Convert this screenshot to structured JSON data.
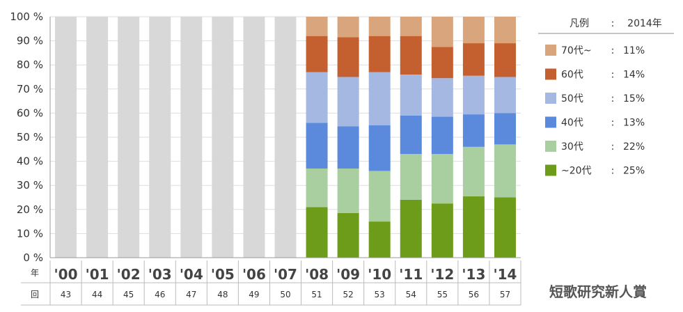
{
  "chart_data": {
    "type": "bar",
    "stacked": true,
    "categories": [
      "'00",
      "'01",
      "'02",
      "'03",
      "'04",
      "'05",
      "'06",
      "'07",
      "'08",
      "'09",
      "'10",
      "'11",
      "'12",
      "'13",
      "'14"
    ],
    "rounds": [
      "43",
      "44",
      "45",
      "46",
      "47",
      "48",
      "49",
      "50",
      "51",
      "52",
      "53",
      "54",
      "55",
      "56",
      "57"
    ],
    "row_headers": {
      "year": "年",
      "round": "回"
    },
    "y_ticks": [
      "0 %",
      "10 %",
      "20 %",
      "30 %",
      "40 %",
      "50 %",
      "60 %",
      "70 %",
      "80 %",
      "90 %",
      "100 %"
    ],
    "ylim": [
      0,
      100
    ],
    "no_data_color": "#d8d8d8",
    "series": [
      {
        "name": "~20代",
        "color": "#6d9c1a",
        "values": [
          null,
          null,
          null,
          null,
          null,
          null,
          null,
          null,
          21,
          18.5,
          15,
          24,
          22.5,
          25.5,
          25
        ]
      },
      {
        "name": "30代",
        "color": "#a9cfa0",
        "values": [
          null,
          null,
          null,
          null,
          null,
          null,
          null,
          null,
          16,
          18.5,
          21,
          19,
          20.5,
          20.5,
          22
        ]
      },
      {
        "name": "40代",
        "color": "#5b89dc",
        "values": [
          null,
          null,
          null,
          null,
          null,
          null,
          null,
          null,
          19,
          17.5,
          19,
          16,
          15.5,
          13.5,
          13
        ]
      },
      {
        "name": "50代",
        "color": "#a4b8e2",
        "values": [
          null,
          null,
          null,
          null,
          null,
          null,
          null,
          null,
          21,
          20.5,
          22,
          17,
          16,
          16,
          15
        ]
      },
      {
        "name": "60代",
        "color": "#c4602f",
        "values": [
          null,
          null,
          null,
          null,
          null,
          null,
          null,
          null,
          15,
          16.5,
          15,
          16,
          13,
          13.5,
          14
        ]
      },
      {
        "name": "70代~",
        "color": "#d8a57c",
        "values": [
          null,
          null,
          null,
          null,
          null,
          null,
          null,
          null,
          8,
          8.5,
          8,
          8,
          12.5,
          11,
          11
        ]
      }
    ],
    "legend": {
      "header_label": "凡例",
      "header_sep": ":",
      "header_year": "2014年",
      "position": "right",
      "entries": [
        {
          "label": "70代~",
          "sep": ":",
          "value": "11%"
        },
        {
          "label": "60代",
          "sep": ":",
          "value": "14%"
        },
        {
          "label": "50代",
          "sep": ":",
          "value": "15%"
        },
        {
          "label": "40代",
          "sep": ":",
          "value": "13%"
        },
        {
          "label": "30代",
          "sep": ":",
          "value": "22%"
        },
        {
          "label": "~20代",
          "sep": ":",
          "value": "25%"
        }
      ]
    },
    "grid": true
  },
  "brand_text": "短歌研究新人賞"
}
